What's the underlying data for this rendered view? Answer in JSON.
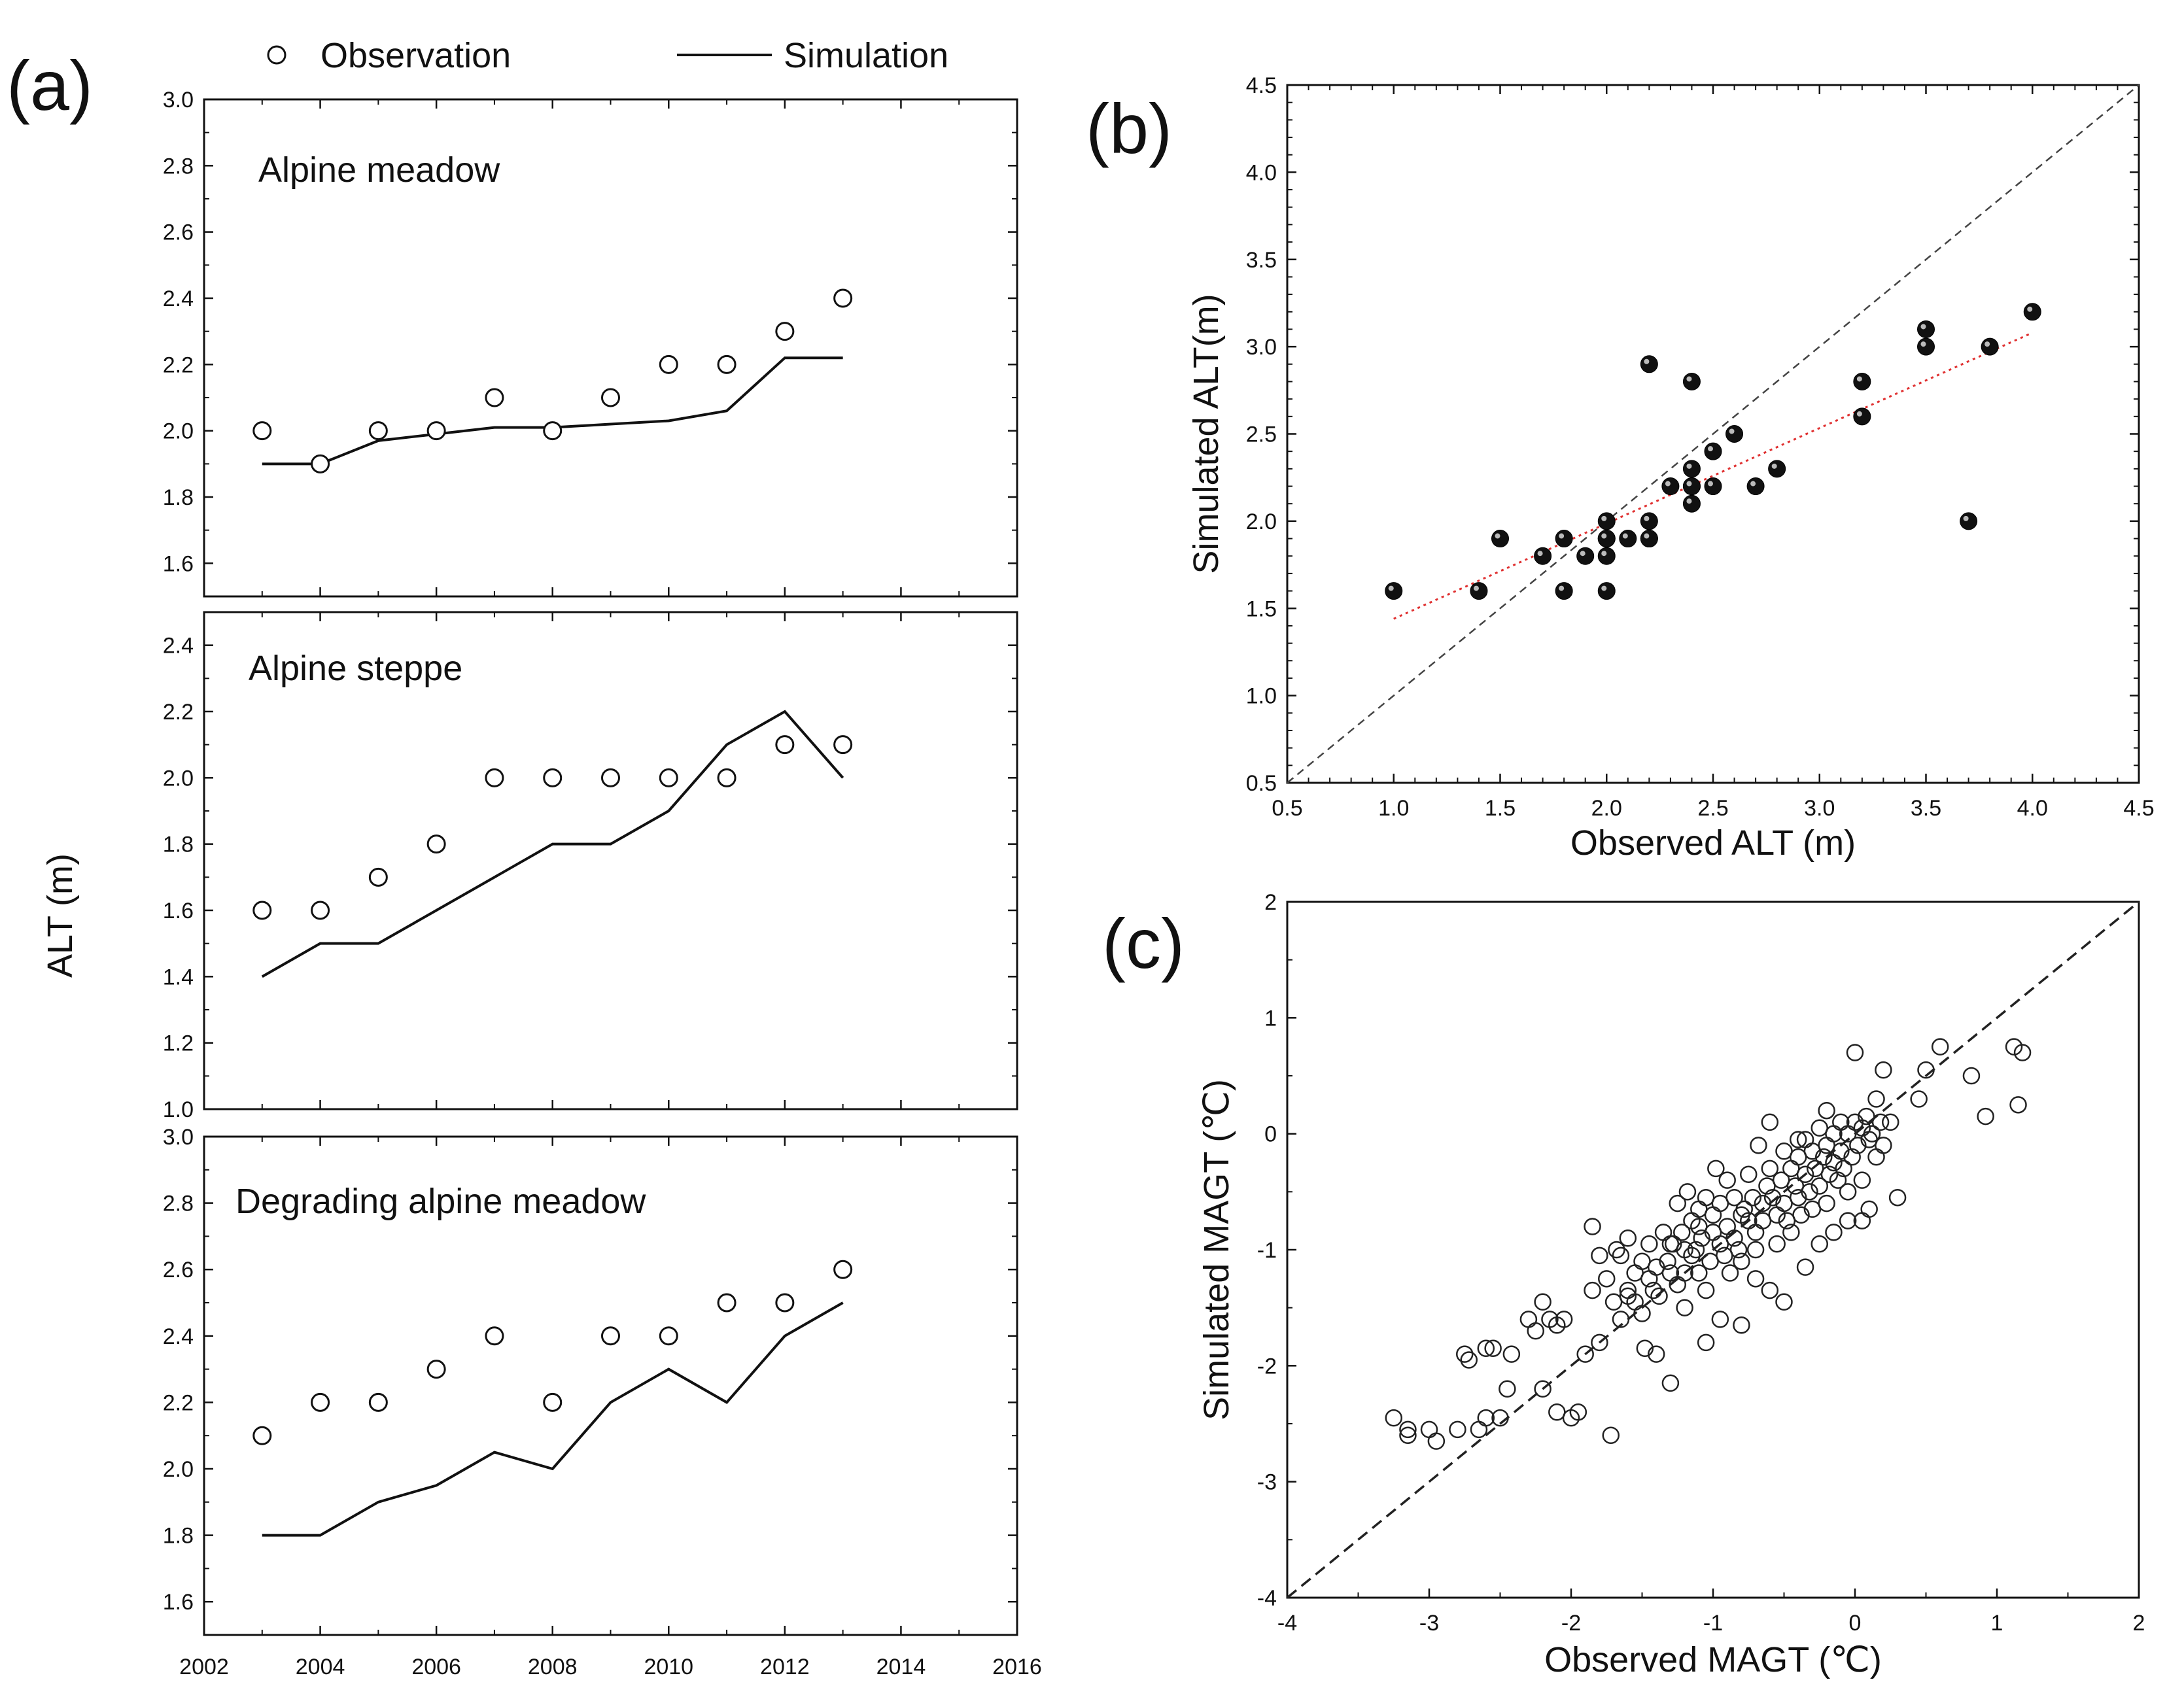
{
  "legend": {
    "observation": "Observation",
    "simulation": "Simulation"
  },
  "panel_labels": {
    "a": "(a)",
    "b": "(b)",
    "c": "(c)"
  },
  "chart_data": [
    {
      "id": "a1",
      "type": "line",
      "title": "Alpine meadow",
      "xlabel": "",
      "ylabel": "ALT (m)",
      "xlim": [
        2002,
        2016
      ],
      "ylim": [
        1.5,
        3.0
      ],
      "yticks": [
        1.6,
        1.8,
        2.0,
        2.2,
        2.4,
        2.6,
        2.8,
        3.0
      ],
      "series": [
        {
          "name": "Observation",
          "marker": "open-circle",
          "x": [
            2003,
            2004,
            2005,
            2006,
            2007,
            2008,
            2009,
            2010,
            2011,
            2012,
            2013
          ],
          "y": [
            2.0,
            1.9,
            2.0,
            2.0,
            2.1,
            2.0,
            2.1,
            2.2,
            2.2,
            2.3,
            2.4
          ]
        },
        {
          "name": "Simulation",
          "marker": "line",
          "x": [
            2003,
            2004,
            2005,
            2006,
            2007,
            2008,
            2009,
            2010,
            2011,
            2012,
            2013
          ],
          "y": [
            1.9,
            1.9,
            1.97,
            1.99,
            2.01,
            2.01,
            2.02,
            2.03,
            2.06,
            2.22,
            2.22
          ]
        }
      ]
    },
    {
      "id": "a2",
      "type": "line",
      "title": "Alpine steppe",
      "xlabel": "",
      "ylabel": "ALT (m)",
      "xlim": [
        2002,
        2016
      ],
      "ylim": [
        1.0,
        2.5
      ],
      "yticks": [
        1.0,
        1.2,
        1.4,
        1.6,
        1.8,
        2.0,
        2.2,
        2.4
      ],
      "series": [
        {
          "name": "Observation",
          "marker": "open-circle",
          "x": [
            2003,
            2004,
            2005,
            2006,
            2007,
            2008,
            2009,
            2010,
            2011,
            2012,
            2013
          ],
          "y": [
            1.6,
            1.6,
            1.7,
            1.8,
            2.0,
            2.0,
            2.0,
            2.0,
            2.0,
            2.1,
            2.1
          ]
        },
        {
          "name": "Simulation",
          "marker": "line",
          "x": [
            2003,
            2004,
            2005,
            2006,
            2007,
            2008,
            2009,
            2010,
            2011,
            2012,
            2013
          ],
          "y": [
            1.4,
            1.5,
            1.5,
            1.6,
            1.7,
            1.8,
            1.8,
            1.9,
            2.1,
            2.2,
            2.0
          ]
        }
      ]
    },
    {
      "id": "a3",
      "type": "line",
      "title": "Degrading alpine meadow",
      "xlabel": "",
      "ylabel": "ALT (m)",
      "xlim": [
        2002,
        2016
      ],
      "ylim": [
        1.5,
        3.0
      ],
      "xticks": [
        2002,
        2004,
        2006,
        2008,
        2010,
        2012,
        2014,
        2016
      ],
      "yticks": [
        1.6,
        1.8,
        2.0,
        2.2,
        2.4,
        2.6,
        2.8,
        3.0
      ],
      "series": [
        {
          "name": "Observation",
          "marker": "open-circle",
          "x": [
            2003,
            2004,
            2005,
            2006,
            2007,
            2008,
            2009,
            2010,
            2011,
            2012,
            2013
          ],
          "y": [
            2.1,
            2.2,
            2.2,
            2.3,
            2.4,
            2.2,
            2.4,
            2.4,
            2.5,
            2.5,
            2.6
          ]
        },
        {
          "name": "Simulation",
          "marker": "line",
          "x": [
            2003,
            2004,
            2005,
            2006,
            2007,
            2008,
            2009,
            2010,
            2011,
            2012,
            2013
          ],
          "y": [
            1.8,
            1.8,
            1.9,
            1.95,
            2.05,
            2.0,
            2.2,
            2.3,
            2.2,
            2.4,
            2.5
          ]
        }
      ]
    },
    {
      "id": "b",
      "type": "scatter",
      "title": "",
      "xlabel": "Observed ALT (m)",
      "ylabel": "Simulated ALT(m)",
      "xlim": [
        0.5,
        4.5
      ],
      "ylim": [
        0.5,
        4.5
      ],
      "xticks": [
        0.5,
        1.0,
        1.5,
        2.0,
        2.5,
        3.0,
        3.5,
        4.0,
        4.5
      ],
      "yticks": [
        0.5,
        1.0,
        1.5,
        2.0,
        2.5,
        3.0,
        3.5,
        4.0,
        4.5
      ],
      "reference_line": "1:1 dashed",
      "fit_line": {
        "x": [
          1.0,
          4.0
        ],
        "y": [
          1.44,
          3.08
        ],
        "style": "red dotted"
      },
      "points": {
        "x": [
          1.0,
          1.4,
          1.5,
          1.7,
          1.8,
          1.8,
          1.9,
          2.0,
          2.0,
          2.0,
          2.0,
          2.0,
          2.1,
          2.2,
          2.2,
          2.2,
          2.2,
          2.3,
          2.4,
          2.4,
          2.4,
          2.4,
          2.4,
          2.5,
          2.5,
          2.6,
          2.7,
          2.8,
          3.2,
          3.2,
          3.5,
          3.5,
          3.7,
          3.8,
          4.0
        ],
        "y": [
          1.6,
          1.6,
          1.9,
          1.8,
          1.9,
          1.6,
          1.8,
          2.0,
          1.9,
          1.8,
          1.6,
          1.9,
          1.9,
          2.9,
          2.0,
          1.9,
          1.9,
          2.2,
          2.8,
          2.3,
          2.2,
          2.2,
          2.1,
          2.4,
          2.2,
          2.5,
          2.2,
          2.3,
          2.8,
          2.6,
          3.1,
          3.0,
          2.0,
          3.0,
          3.2
        ]
      }
    },
    {
      "id": "c",
      "type": "scatter",
      "title": "",
      "xlabel": "Observed MAGT (℃)",
      "ylabel": "Simulated MAGT (℃)",
      "xlim": [
        -4,
        2
      ],
      "ylim": [
        -4,
        2
      ],
      "xticks": [
        -4,
        -3,
        -2,
        -1,
        0,
        1,
        2
      ],
      "yticks": [
        -4,
        -3,
        -2,
        -1,
        0,
        1,
        2
      ],
      "reference_line": "1:1 dashed",
      "points": {
        "x": [
          -3.25,
          -3.15,
          -3.15,
          -3.0,
          -2.95,
          -2.8,
          -2.75,
          -2.72,
          -2.65,
          -2.6,
          -2.6,
          -2.55,
          -2.5,
          -2.45,
          -2.42,
          -2.3,
          -2.25,
          -2.2,
          -2.2,
          -2.15,
          -2.1,
          -2.1,
          -2.05,
          -2.0,
          -1.95,
          -1.9,
          -1.85,
          -1.8,
          -1.8,
          -1.75,
          -1.72,
          -1.7,
          -1.68,
          -1.65,
          -1.6,
          -1.6,
          -1.55,
          -1.55,
          -1.5,
          -1.5,
          -1.48,
          -1.45,
          -1.42,
          -1.4,
          -1.4,
          -1.38,
          -1.35,
          -1.32,
          -1.3,
          -1.3,
          -1.28,
          -1.25,
          -1.25,
          -1.22,
          -1.2,
          -1.2,
          -1.18,
          -1.15,
          -1.15,
          -1.12,
          -1.1,
          -1.1,
          -1.08,
          -1.05,
          -1.05,
          -1.02,
          -1.0,
          -1.0,
          -0.98,
          -0.95,
          -0.95,
          -0.92,
          -0.9,
          -0.9,
          -0.88,
          -0.85,
          -0.85,
          -0.82,
          -0.8,
          -0.8,
          -0.78,
          -0.75,
          -0.75,
          -0.72,
          -0.7,
          -0.7,
          -0.68,
          -0.65,
          -0.65,
          -0.62,
          -0.6,
          -0.6,
          -0.58,
          -0.55,
          -0.55,
          -0.52,
          -0.5,
          -0.5,
          -0.48,
          -0.45,
          -0.45,
          -0.42,
          -0.4,
          -0.4,
          -0.38,
          -0.35,
          -0.35,
          -0.32,
          -0.3,
          -0.3,
          -0.28,
          -0.25,
          -0.25,
          -0.22,
          -0.2,
          -0.2,
          -0.18,
          -0.15,
          -0.15,
          -0.12,
          -0.1,
          -0.1,
          -0.08,
          -0.05,
          -0.05,
          -0.02,
          0.0,
          0.0,
          0.02,
          0.05,
          0.05,
          0.08,
          0.1,
          0.1,
          0.12,
          0.15,
          0.15,
          0.18,
          0.2,
          0.2,
          0.25,
          0.3,
          0.45,
          0.5,
          0.6,
          0.82,
          0.92,
          1.12,
          1.15,
          1.18,
          -1.85,
          -1.6,
          -1.3,
          -1.1,
          -0.95,
          -0.7,
          -0.5,
          -0.35,
          -0.25,
          -0.15,
          -0.05,
          -0.6,
          -0.8,
          -1.05,
          -1.2,
          -1.45,
          -1.65,
          -0.4,
          -0.2,
          0.05
        ],
        "y": [
          -2.45,
          -2.6,
          -2.55,
          -2.55,
          -2.65,
          -2.55,
          -1.9,
          -1.95,
          -2.55,
          -1.85,
          -2.45,
          -1.85,
          -2.45,
          -2.2,
          -1.9,
          -1.6,
          -1.7,
          -1.45,
          -2.2,
          -1.6,
          -1.65,
          -2.4,
          -1.6,
          -2.45,
          -2.4,
          -1.9,
          -1.35,
          -1.05,
          -1.8,
          -1.25,
          -2.6,
          -1.45,
          -1.0,
          -1.6,
          -0.9,
          -1.35,
          -1.2,
          -1.45,
          -1.1,
          -1.55,
          -1.85,
          -0.95,
          -1.35,
          -1.15,
          -1.9,
          -1.4,
          -0.85,
          -1.1,
          -1.2,
          -2.15,
          -0.95,
          -0.6,
          -1.3,
          -0.85,
          -1.0,
          -1.2,
          -0.5,
          -0.75,
          -1.05,
          -1.0,
          -0.8,
          -1.2,
          -0.9,
          -0.55,
          -1.35,
          -1.1,
          -0.7,
          -0.85,
          -0.3,
          -0.6,
          -0.95,
          -1.05,
          -0.4,
          -0.8,
          -1.2,
          -0.55,
          -0.9,
          -1.0,
          -0.7,
          -1.1,
          -0.65,
          -0.35,
          -0.75,
          -0.55,
          -0.85,
          -1.0,
          -0.1,
          -0.6,
          -0.75,
          -0.45,
          0.1,
          -0.3,
          -0.55,
          -0.7,
          -0.95,
          -0.4,
          -0.15,
          -0.6,
          -0.75,
          -0.3,
          -0.85,
          -0.45,
          -0.2,
          -0.55,
          -0.7,
          -0.05,
          -0.35,
          -0.5,
          -0.15,
          -0.65,
          -0.3,
          0.05,
          -0.45,
          -0.2,
          -0.6,
          -0.1,
          -0.35,
          0.0,
          -0.25,
          -0.4,
          0.1,
          -0.15,
          -0.3,
          0.0,
          -0.5,
          -0.2,
          0.7,
          0.1,
          -0.1,
          0.05,
          -0.4,
          0.15,
          -0.05,
          -0.65,
          0.0,
          0.3,
          -0.2,
          0.1,
          0.55,
          -0.1,
          0.1,
          -0.55,
          0.3,
          0.55,
          0.75,
          0.5,
          0.15,
          0.75,
          0.25,
          0.7,
          -0.8,
          -1.4,
          -0.95,
          -0.65,
          -1.6,
          -1.25,
          -1.45,
          -1.15,
          -0.95,
          -0.85,
          -0.75,
          -1.35,
          -1.65,
          -1.8,
          -1.5,
          -1.25,
          -1.05,
          -0.05,
          0.2,
          -0.75
        ]
      }
    }
  ]
}
